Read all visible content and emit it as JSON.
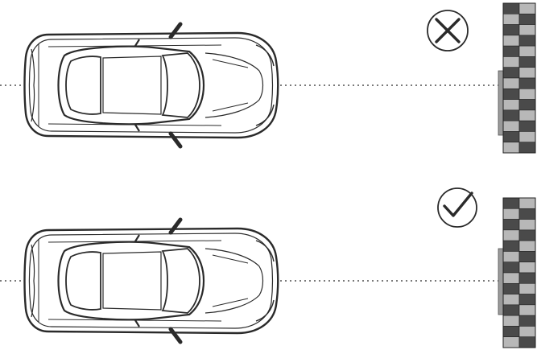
{
  "panels": [
    {
      "id": "incorrect",
      "verdict_icon": "cross-icon",
      "car_icon": "car-top-view-icon",
      "obstacle": "brick-wall-icon",
      "centerline": "dashed-centerline"
    },
    {
      "id": "correct",
      "verdict_icon": "check-icon",
      "car_icon": "car-top-view-icon",
      "obstacle": "brick-wall-icon",
      "centerline": "dashed-centerline"
    }
  ],
  "colors": {
    "line": "#2a2a2a",
    "brick_dark": "#4a4a4a",
    "brick_light": "#b8b8b8",
    "sensor_plate": "#9a9a9a",
    "background": "#ffffff"
  }
}
